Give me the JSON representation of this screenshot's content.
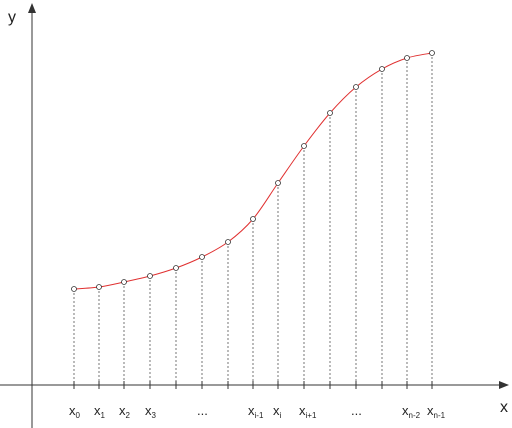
{
  "axes": {
    "y_label": "y",
    "x_label": "x"
  },
  "labels": [
    {
      "main": "x",
      "sub": "0"
    },
    {
      "main": "x",
      "sub": "1"
    },
    {
      "main": "x",
      "sub": "2"
    },
    {
      "main": "x",
      "sub": "3"
    },
    {
      "main": "..."
    },
    {
      "main": "x",
      "sub": "i-1"
    },
    {
      "main": "x",
      "sub": "i"
    },
    {
      "main": "x",
      "sub": "i+1"
    },
    {
      "main": "..."
    },
    {
      "main": "x",
      "sub": "n-2"
    },
    {
      "main": "x",
      "sub": "n-1"
    }
  ]
}
